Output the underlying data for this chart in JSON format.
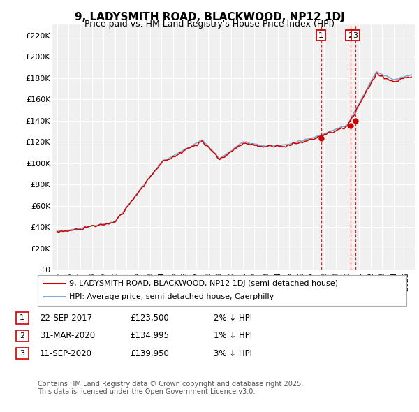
{
  "title": "9, LADYSMITH ROAD, BLACKWOOD, NP12 1DJ",
  "subtitle": "Price paid vs. HM Land Registry's House Price Index (HPI)",
  "ylim": [
    0,
    230000
  ],
  "yticks": [
    0,
    20000,
    40000,
    60000,
    80000,
    100000,
    120000,
    140000,
    160000,
    180000,
    200000,
    220000
  ],
  "ytick_labels": [
    "£0",
    "£20K",
    "£40K",
    "£60K",
    "£80K",
    "£100K",
    "£120K",
    "£140K",
    "£160K",
    "£180K",
    "£200K",
    "£220K"
  ],
  "legend_line1": "9, LADYSMITH ROAD, BLACKWOOD, NP12 1DJ (semi-detached house)",
  "legend_line2": "HPI: Average price, semi-detached house, Caerphilly",
  "line_color": "#cc0000",
  "hpi_color": "#88aacc",
  "annotation_color": "#cc0000",
  "footnote1": "Contains HM Land Registry data © Crown copyright and database right 2025.",
  "footnote2": "This data is licensed under the Open Government Licence v3.0.",
  "transactions": [
    {
      "num": "1",
      "date": "22-SEP-2017",
      "price": "£123,500",
      "hpi_diff": "2% ↓ HPI"
    },
    {
      "num": "2",
      "date": "31-MAR-2020",
      "price": "£134,995",
      "hpi_diff": "1% ↓ HPI"
    },
    {
      "num": "3",
      "date": "11-SEP-2020",
      "price": "£139,950",
      "hpi_diff": "3% ↓ HPI"
    }
  ],
  "transaction_years": [
    2017.72,
    2020.24,
    2020.7
  ],
  "transaction_prices": [
    123500,
    134995,
    139950
  ],
  "background_color": "#ffffff",
  "plot_bg_color": "#f0f0f0",
  "xlim_left": 1994.6,
  "xlim_right": 2025.8
}
